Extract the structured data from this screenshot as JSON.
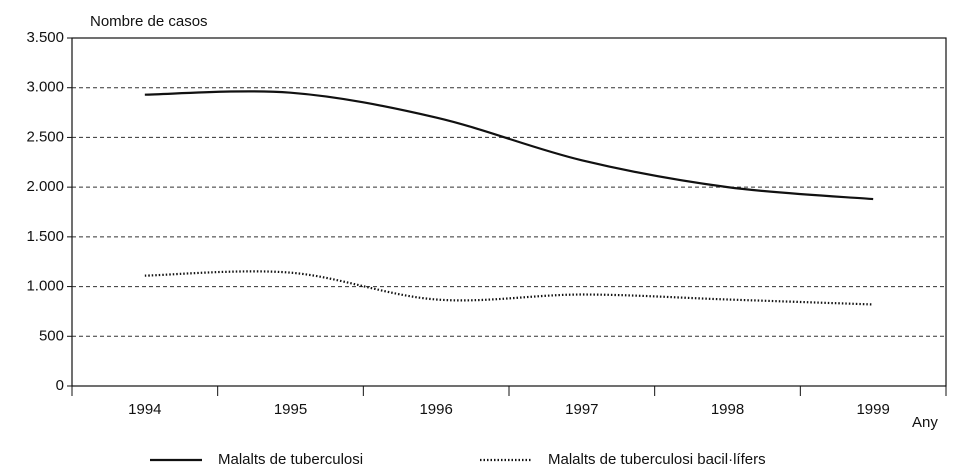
{
  "chart_data": {
    "type": "line",
    "y_label": "Nombre de casos",
    "x_label": "Any",
    "categories": [
      "1994",
      "1995",
      "1996",
      "1997",
      "1998",
      "1999"
    ],
    "series": [
      {
        "name": "Malalts de tuberculosi",
        "color": "#111111",
        "dash": "solid",
        "values": [
          2930,
          2950,
          2700,
          2270,
          2000,
          1880
        ]
      },
      {
        "name": "Malalts de tuberculosi bacil·lífers",
        "color": "#111111",
        "dash": "dotted",
        "values": [
          1110,
          1140,
          870,
          920,
          870,
          820
        ]
      }
    ],
    "ylim": [
      0,
      3500
    ],
    "yticks": [
      0,
      500,
      {
        "value": 1000,
        "label": "1.000"
      },
      {
        "value": 1500,
        "label": "1.500"
      },
      {
        "value": 2000,
        "label": "2.000"
      },
      {
        "value": 2500,
        "label": "2.500"
      },
      {
        "value": 3000,
        "label": "3.000"
      },
      {
        "value": 3500,
        "label": "3.500"
      }
    ],
    "grid": true
  }
}
